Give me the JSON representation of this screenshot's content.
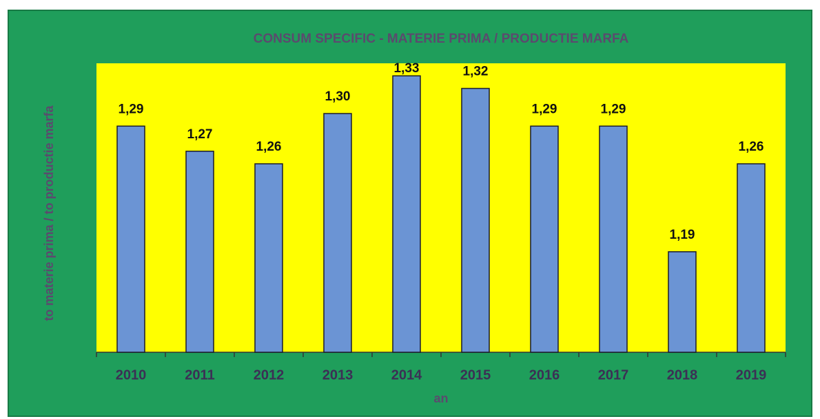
{
  "chart_data": {
    "type": "bar",
    "title": "CONSUM SPECIFIC - MATERIE PRIMA / PRODUCTIE MARFA",
    "x_label": "an",
    "y_label": "to materie prima / to productie marfa",
    "categories": [
      "2010",
      "2011",
      "2012",
      "2013",
      "2014",
      "2015",
      "2016",
      "2017",
      "2018",
      "2019"
    ],
    "values": [
      1.29,
      1.27,
      1.26,
      1.3,
      1.33,
      1.32,
      1.29,
      1.29,
      1.19,
      1.26
    ],
    "value_labels": [
      "1,29",
      "1,27",
      "1,26",
      "1,30",
      "1,33",
      "1,32",
      "1,29",
      "1,29",
      "1,19",
      "1,26"
    ],
    "color": "#6b94d4",
    "ylim": [
      1.11,
      1.34
    ]
  }
}
